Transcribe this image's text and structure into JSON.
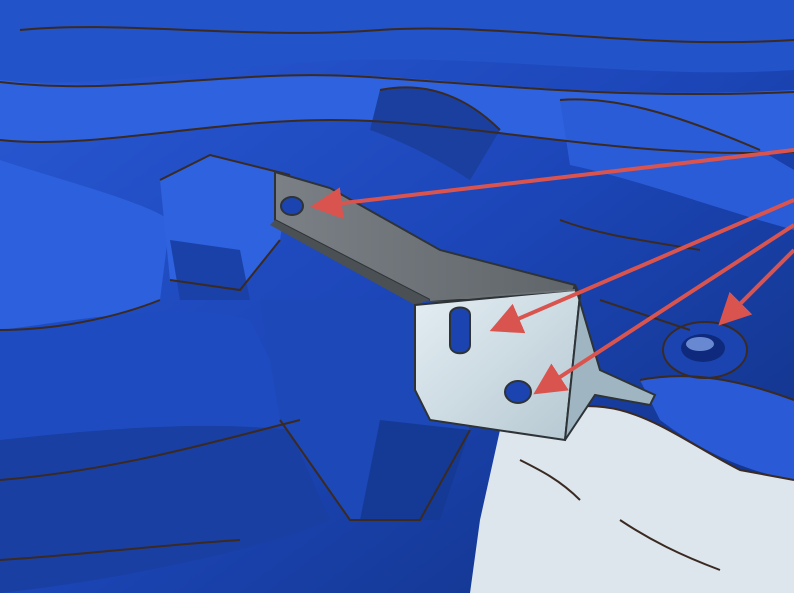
{
  "viewport": {
    "mode": "3d-scan-cad-comparison",
    "text_labels": []
  },
  "colors": {
    "scan_surface": "#1f4fc4",
    "scan_highlight": "#4c7ff0",
    "scan_shadow": "#0e2a7a",
    "edge_lines": "#3a2a22",
    "bracket_top": "#6e7479",
    "bracket_side": "#c9d9e2",
    "bracket_edge": "#2e3337",
    "background_gap": "#dde6ec",
    "arrow": "#d9544f"
  },
  "annotations": {
    "arrow_count": 4,
    "targets": [
      "slot-hole-top",
      "slot-hole-front",
      "round-hole-front",
      "scan-boss-hole"
    ]
  }
}
